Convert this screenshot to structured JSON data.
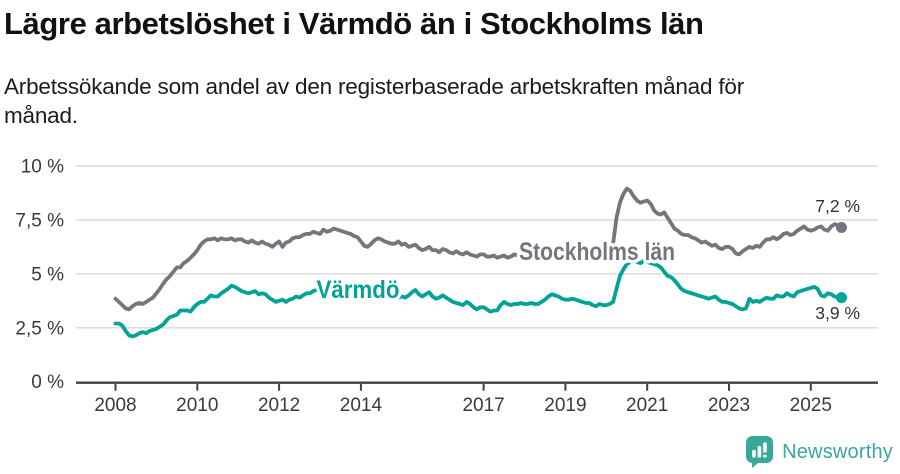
{
  "title": "Lägre arbetslöshet i Värmdö än i Stockholms län",
  "subtitle_lines": [
    "Arbetssökande som andel av den registerbaserade arbetskraften månad för",
    "månad."
  ],
  "footer": {
    "logo_text": "Newsworthy",
    "logo_icon": "newsworthy-speech-bubble-bar-chart-icon",
    "logo_color": "#3aa79b"
  },
  "colors": {
    "background": "#ffffff",
    "grid": "#d8d8d8",
    "axis": "#404045",
    "tick_label": "#3a3a3a",
    "end_label": "#333333"
  },
  "chart_data": {
    "type": "line",
    "title": "Lägre arbetslöshet i Värmdö än i Stockholms län",
    "subtitle": "Arbetssökande som andel av den registerbaserade arbetskraften månad för månad.",
    "unit": "percent",
    "x_start": "2008-01",
    "x_end": "2025-10",
    "x_frequency": "monthly",
    "x_tick_years": [
      2008,
      2010,
      2012,
      2014,
      2017,
      2019,
      2021,
      2023,
      2025
    ],
    "x_tick_labels": [
      "2008",
      "2010",
      "2012",
      "2014",
      "2017",
      "2019",
      "2021",
      "2023",
      "2025"
    ],
    "y_ticks": [
      0,
      2.5,
      5,
      7.5,
      10
    ],
    "y_tick_labels": [
      "0 %",
      "2,5 %",
      "5 %",
      "7,5 %",
      "10 %"
    ],
    "ylim": [
      0,
      10
    ],
    "grid": "horizontal",
    "legend": "inline-labels",
    "series": [
      {
        "name": "Stockholms län",
        "color": "#75757d",
        "end_value": 7.2,
        "end_label": "7,2 %",
        "end_label_side": "above",
        "inline_label": {
          "x": 597,
          "y": 260,
          "width": 156
        },
        "values": [
          3.85,
          3.7,
          3.55,
          3.4,
          3.35,
          3.5,
          3.6,
          3.65,
          3.6,
          3.7,
          3.8,
          3.9,
          4.1,
          4.3,
          4.55,
          4.75,
          4.9,
          5.1,
          5.3,
          5.3,
          5.5,
          5.6,
          5.75,
          5.9,
          6.1,
          6.35,
          6.5,
          6.6,
          6.6,
          6.65,
          6.55,
          6.65,
          6.6,
          6.6,
          6.65,
          6.55,
          6.6,
          6.6,
          6.5,
          6.45,
          6.55,
          6.45,
          6.4,
          6.5,
          6.4,
          6.35,
          6.25,
          6.4,
          6.5,
          6.25,
          6.45,
          6.5,
          6.65,
          6.7,
          6.7,
          6.8,
          6.85,
          6.85,
          6.95,
          6.9,
          6.85,
          7.05,
          6.95,
          7.0,
          7.1,
          7.05,
          7.0,
          6.95,
          6.9,
          6.85,
          6.75,
          6.7,
          6.5,
          6.3,
          6.25,
          6.4,
          6.55,
          6.65,
          6.6,
          6.5,
          6.45,
          6.4,
          6.4,
          6.5,
          6.35,
          6.4,
          6.25,
          6.3,
          6.35,
          6.2,
          6.1,
          6.15,
          6.25,
          6.1,
          6.1,
          6.0,
          6.15,
          6.1,
          6.0,
          5.95,
          6.05,
          5.95,
          5.9,
          6.0,
          5.9,
          5.85,
          5.8,
          5.9,
          5.9,
          5.8,
          5.8,
          5.85,
          5.75,
          5.8,
          5.85,
          5.75,
          5.8,
          5.9,
          5.85,
          5.95,
          5.95,
          5.9,
          5.85,
          5.95,
          5.9,
          5.95,
          6.05,
          6.0,
          5.9,
          5.95,
          6.0,
          6.05,
          6.0,
          5.95,
          5.9,
          6.0,
          6.05,
          6.1,
          6.15,
          6.1,
          6.05,
          6.0,
          6.1,
          6.15,
          6.15,
          6.2,
          6.4,
          7.6,
          8.3,
          8.7,
          8.95,
          8.85,
          8.6,
          8.4,
          8.3,
          8.35,
          8.4,
          8.25,
          7.95,
          7.8,
          7.75,
          7.85,
          7.6,
          7.35,
          7.1,
          7.0,
          6.85,
          6.8,
          6.8,
          6.7,
          6.65,
          6.55,
          6.45,
          6.5,
          6.4,
          6.3,
          6.35,
          6.2,
          6.15,
          6.25,
          6.25,
          6.15,
          5.95,
          5.9,
          6.05,
          6.15,
          6.25,
          6.2,
          6.3,
          6.25,
          6.45,
          6.6,
          6.6,
          6.7,
          6.6,
          6.7,
          6.85,
          6.9,
          6.8,
          6.85,
          7.0,
          7.1,
          7.2,
          7.05,
          7.0,
          7.05,
          7.15,
          7.2,
          7.05,
          7.0,
          7.2,
          7.3,
          7.25,
          7.15
        ]
      },
      {
        "name": "Värmdö",
        "color": "#00a396",
        "end_value": 3.9,
        "end_label": "3,9 %",
        "end_label_side": "below",
        "inline_label": {
          "x": 358,
          "y": 298,
          "width": 83
        },
        "values": [
          2.7,
          2.7,
          2.6,
          2.35,
          2.15,
          2.1,
          2.15,
          2.25,
          2.3,
          2.25,
          2.35,
          2.4,
          2.45,
          2.55,
          2.65,
          2.85,
          3.0,
          3.05,
          3.1,
          3.3,
          3.3,
          3.3,
          3.25,
          3.45,
          3.6,
          3.7,
          3.7,
          3.85,
          4.0,
          3.95,
          3.95,
          4.1,
          4.2,
          4.3,
          4.45,
          4.4,
          4.3,
          4.2,
          4.15,
          4.1,
          4.15,
          4.2,
          4.05,
          4.1,
          4.05,
          3.9,
          3.8,
          3.7,
          3.75,
          3.8,
          3.7,
          3.8,
          3.85,
          3.95,
          3.9,
          4.0,
          4.1,
          4.1,
          4.2,
          4.25,
          4.2,
          4.3,
          4.3,
          4.4,
          4.5,
          4.55,
          4.5,
          4.45,
          4.35,
          4.3,
          4.25,
          4.2,
          4.15,
          4.1,
          4.0,
          4.05,
          4.1,
          4.05,
          4.0,
          3.95,
          4.0,
          3.9,
          3.85,
          3.9,
          3.95,
          3.9,
          4.0,
          4.15,
          4.25,
          4.05,
          3.95,
          4.05,
          4.15,
          3.95,
          3.85,
          3.9,
          4.0,
          3.9,
          3.8,
          3.7,
          3.65,
          3.6,
          3.55,
          3.7,
          3.6,
          3.45,
          3.35,
          3.45,
          3.45,
          3.35,
          3.25,
          3.3,
          3.3,
          3.55,
          3.7,
          3.6,
          3.55,
          3.6,
          3.6,
          3.65,
          3.6,
          3.6,
          3.65,
          3.6,
          3.6,
          3.7,
          3.8,
          3.95,
          4.05,
          4.0,
          3.95,
          3.85,
          3.8,
          3.8,
          3.85,
          3.8,
          3.75,
          3.7,
          3.65,
          3.65,
          3.55,
          3.5,
          3.6,
          3.55,
          3.55,
          3.6,
          3.7,
          4.3,
          4.9,
          5.2,
          5.45,
          5.55,
          5.6,
          5.55,
          5.5,
          5.6,
          5.55,
          5.5,
          5.45,
          5.4,
          5.3,
          5.1,
          4.9,
          4.85,
          4.7,
          4.5,
          4.3,
          4.2,
          4.15,
          4.1,
          4.05,
          4.0,
          3.95,
          3.9,
          3.85,
          3.9,
          3.95,
          3.8,
          3.7,
          3.7,
          3.65,
          3.6,
          3.5,
          3.4,
          3.35,
          3.4,
          3.85,
          3.7,
          3.75,
          3.7,
          3.8,
          3.9,
          3.85,
          3.85,
          4.0,
          3.95,
          3.95,
          4.1,
          4.0,
          3.95,
          4.15,
          4.2,
          4.25,
          4.3,
          4.35,
          4.4,
          4.3,
          4.0,
          3.95,
          4.1,
          4.05,
          3.95,
          3.9,
          3.9
        ]
      }
    ]
  }
}
